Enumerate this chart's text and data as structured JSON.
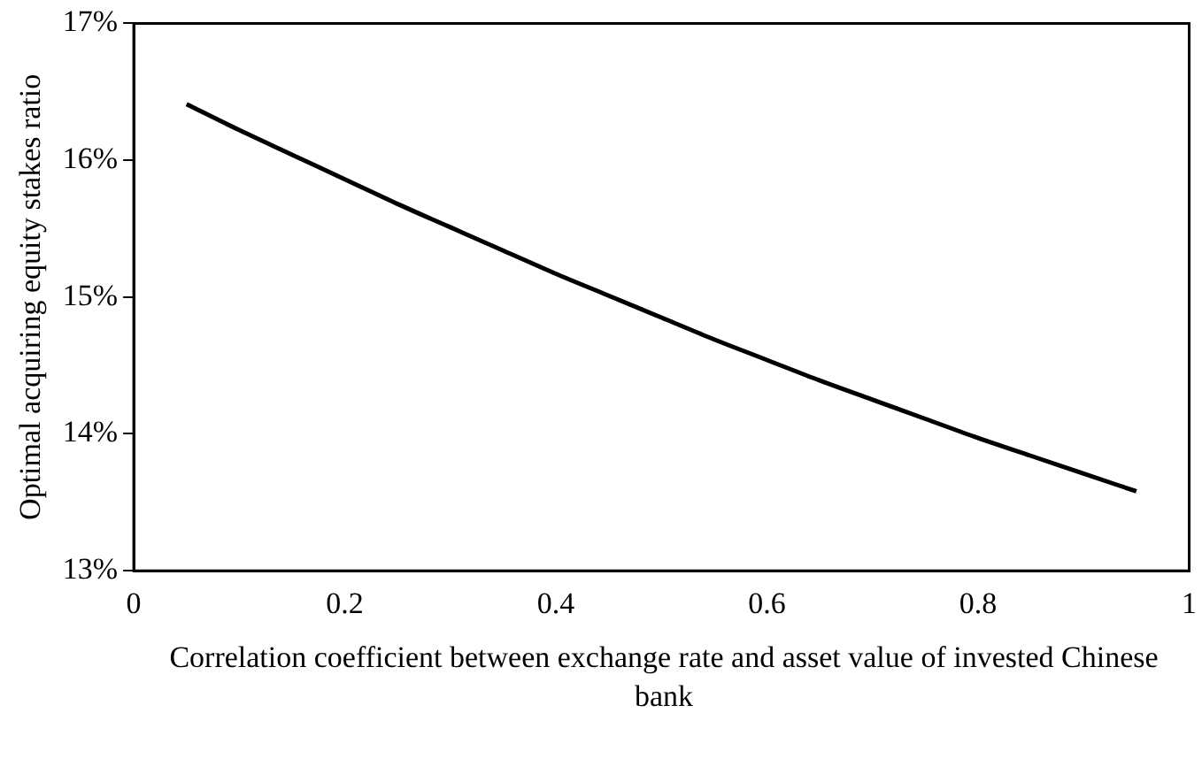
{
  "chart_data": {
    "type": "line",
    "xlabel": "Correlation coefficient between exchange rate and asset value of invested Chinese bank",
    "ylabel": "Optimal acquiring equity stakes ratio",
    "x": [
      0.05,
      0.1,
      0.15,
      0.2,
      0.25,
      0.3,
      0.35,
      0.4,
      0.45,
      0.5,
      0.55,
      0.6,
      0.65,
      0.7,
      0.75,
      0.8,
      0.85,
      0.9,
      0.95
    ],
    "series": [
      {
        "color": "#000000",
        "values": [
          16.41,
          16.22,
          16.04,
          15.86,
          15.68,
          15.51,
          15.34,
          15.17,
          15.01,
          14.85,
          14.69,
          14.54,
          14.39,
          14.25,
          14.11,
          13.97,
          13.84,
          13.71,
          13.58
        ]
      }
    ],
    "xlim": [
      0,
      1
    ],
    "xticks": [
      0,
      0.2,
      0.4,
      0.6,
      0.8,
      1
    ],
    "ylim": [
      13,
      17
    ],
    "yticks": [
      {
        "value": 13,
        "label": "13%"
      },
      {
        "value": 14,
        "label": "14%"
      },
      {
        "value": 15,
        "label": "15%"
      },
      {
        "value": 16,
        "label": "16%"
      },
      {
        "value": 17,
        "label": "17%"
      }
    ],
    "grid": false,
    "legend": false,
    "marker": "none",
    "line_style": "solid"
  }
}
